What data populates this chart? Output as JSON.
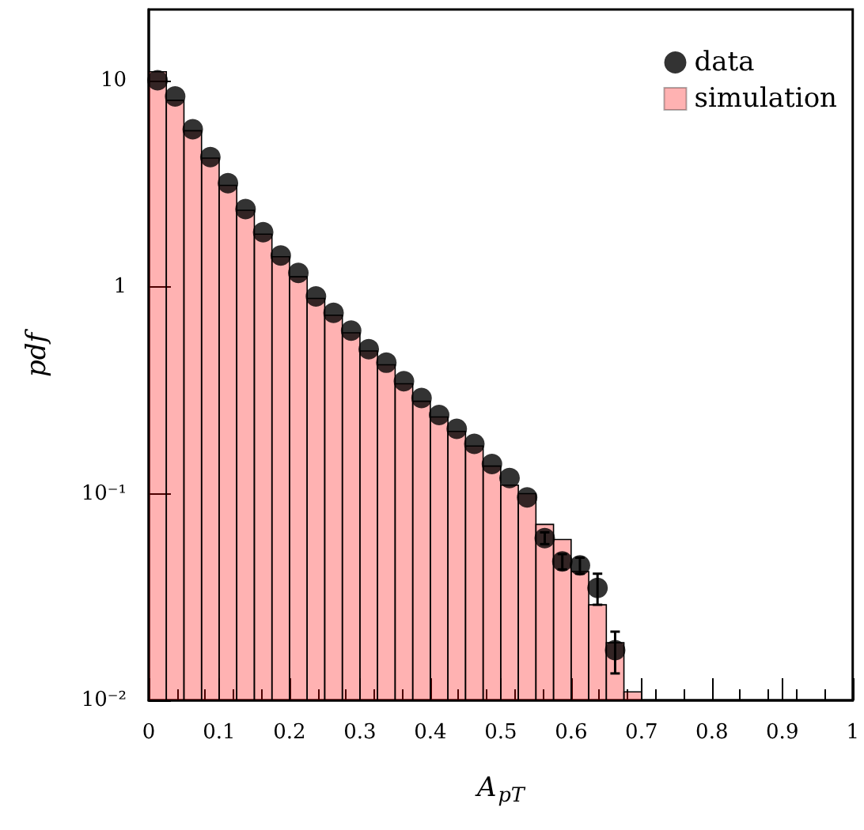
{
  "chart_data": {
    "type": "histogram",
    "xlabel": "A$_{pT}$",
    "ylabel": "pdf",
    "log": "y",
    "xlim": [
      0,
      1
    ],
    "xticks": [
      0,
      0.1,
      0.2,
      0.3,
      0.4,
      0.5,
      0.6,
      0.7,
      0.8,
      0.9,
      1
    ],
    "ylim": [
      0.01,
      22
    ],
    "yticks": [
      {
        "value": 0.01,
        "label": "10⁻²"
      },
      {
        "value": 0.1,
        "label": "10⁻¹"
      },
      1,
      10
    ],
    "grid": false,
    "legend": "top right",
    "series": [
      {
        "name": "simulation",
        "color": "#ff0000",
        "bins": [
          0,
          0.025,
          0.05,
          0.075,
          0.1,
          0.125,
          0.15,
          0.175,
          0.2,
          0.225,
          0.25,
          0.275,
          0.3,
          0.325,
          0.35,
          0.375,
          0.4,
          0.425,
          0.45,
          0.475,
          0.5,
          0.525,
          0.55,
          0.575,
          0.6,
          0.625,
          0.65,
          0.675,
          0.7
        ],
        "values": [
          11,
          8.0,
          5.7,
          4.2,
          3.1,
          2.35,
          1.8,
          1.4,
          1.12,
          0.88,
          0.73,
          0.6,
          0.49,
          0.42,
          0.34,
          0.28,
          0.235,
          0.2,
          0.17,
          0.136,
          0.11,
          0.1,
          0.071,
          0.06,
          0.042,
          0.029,
          0.019,
          0.011
        ]
      },
      {
        "name": "data",
        "type": "scatter",
        "color": "#000000",
        "marker": "circle",
        "x": [
          0.0125,
          0.0375,
          0.0625,
          0.0875,
          0.1125,
          0.1375,
          0.1625,
          0.1875,
          0.2125,
          0.2375,
          0.2625,
          0.2875,
          0.3125,
          0.3375,
          0.3625,
          0.3875,
          0.4125,
          0.4375,
          0.4625,
          0.4875,
          0.5125,
          0.5375,
          0.5625,
          0.5875,
          0.6125,
          0.6375,
          0.6625
        ],
        "values": [
          10,
          8.35,
          5.8,
          4.25,
          3.18,
          2.38,
          1.84,
          1.42,
          1.17,
          0.9,
          0.75,
          0.615,
          0.5,
          0.43,
          0.35,
          0.29,
          0.24,
          0.206,
          0.174,
          0.139,
          0.119,
          0.096,
          0.061,
          0.047,
          0.045,
          0.035,
          0.0175
        ],
        "errors": [
          null,
          null,
          null,
          null,
          null,
          null,
          null,
          null,
          null,
          null,
          null,
          null,
          null,
          null,
          null,
          null,
          null,
          null,
          null,
          null,
          null,
          null,
          0.004,
          0.004,
          0.004,
          0.006,
          0.004
        ]
      }
    ]
  }
}
